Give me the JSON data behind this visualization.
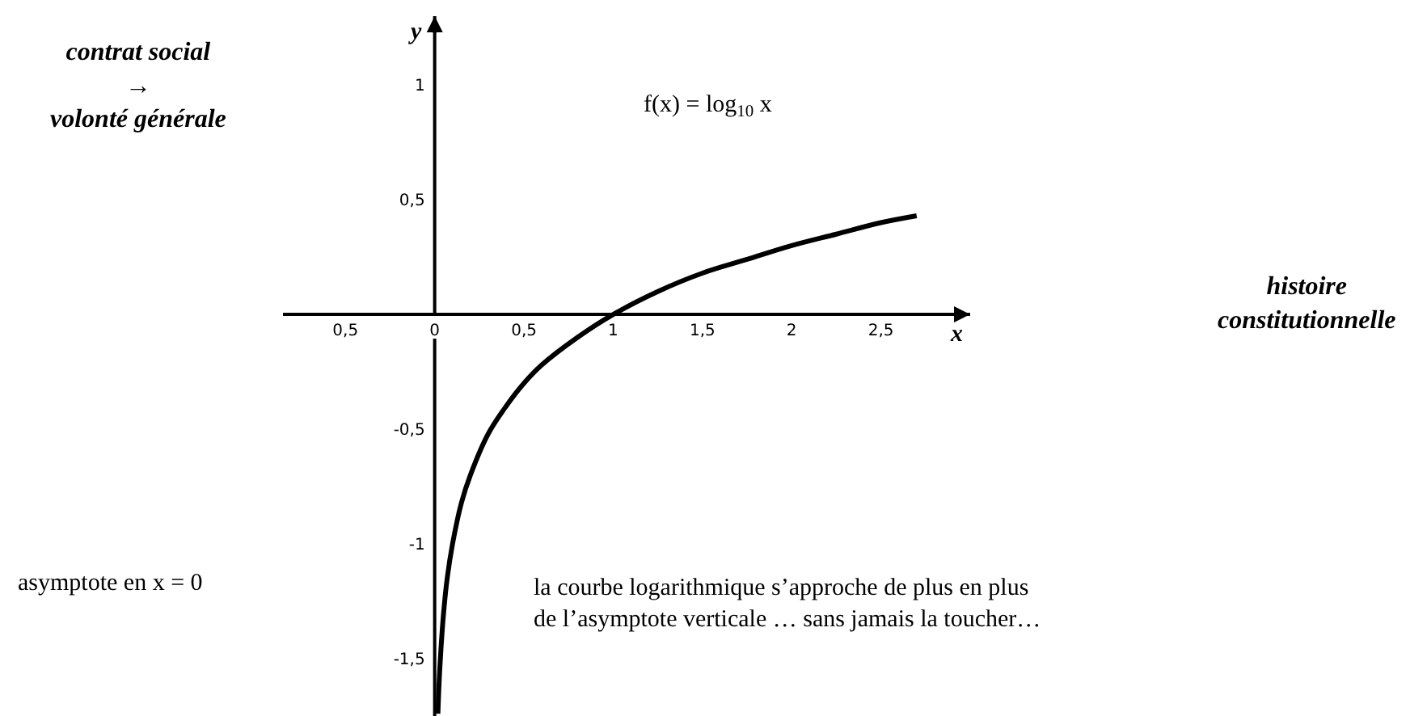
{
  "chart_data": {
    "type": "line",
    "xlabel": "x",
    "ylabel": "y",
    "annotations": [
      "contrat social\n→\nvolonté générale",
      "f(x) = log$_{10}$ x",
      "histoire\nconstitutionnelle",
      "asymptote en x = 0",
      "la courbe logarithmique s’approche de plus en plus\nde l’asymptote verticale … sans jamais la toucher…"
    ],
    "x": [
      0.018,
      0.025,
      0.035,
      0.05,
      0.07,
      0.1,
      0.15,
      0.2,
      0.3,
      0.4,
      0.5,
      0.6,
      0.8,
      1,
      1.25,
      1.5,
      1.75,
      2,
      2.25,
      2.5,
      2.7
    ],
    "series": [
      {
        "color": "#000000",
        "values": [
          -1.74,
          -1.6,
          -1.46,
          -1.3,
          -1.15,
          -1,
          -0.82,
          -0.7,
          -0.52,
          -0.4,
          -0.3,
          -0.22,
          -0.1,
          0,
          0.1,
          0.18,
          0.24,
          0.3,
          0.35,
          0.4,
          0.43
        ]
      }
    ],
    "xlim": [
      -0.85,
      3.0
    ],
    "ylim": [
      -1.75,
      1.3
    ],
    "xticks": [
      {
        "value": -0.5,
        "label": "0,5"
      },
      0,
      {
        "value": 0.5,
        "label": "0,5"
      },
      1,
      {
        "value": 1.5,
        "label": "1,5"
      },
      2,
      {
        "value": 2.5,
        "label": "2,5"
      }
    ],
    "yticks": [
      1,
      {
        "value": 0.5,
        "label": "0,5"
      },
      {
        "value": -0.5,
        "label": "-0,5"
      },
      -1,
      {
        "value": -1.5,
        "label": "-1,5"
      }
    ],
    "marker": "none",
    "line_style": "solid"
  }
}
